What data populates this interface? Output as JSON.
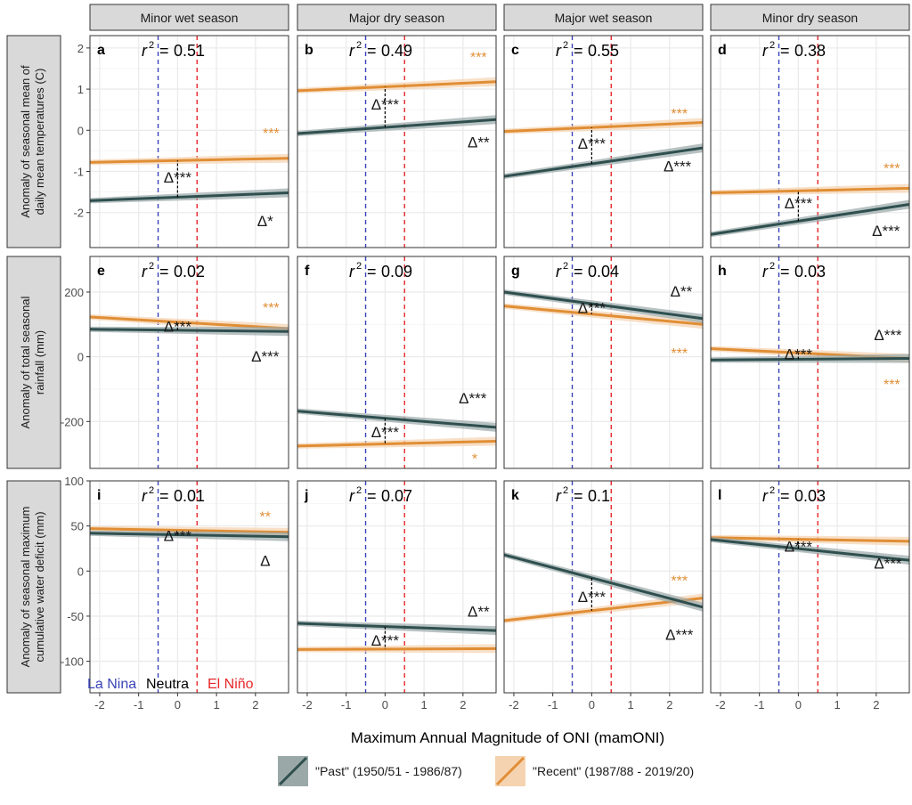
{
  "colors": {
    "past": "#2f4f4f",
    "past_band": "#9aa8a8",
    "recent": "#e08e35",
    "recent_band": "#f5d3b0",
    "la_nina": "#3a44b8",
    "el_nino": "#e8272b",
    "strip_bg": "#d9d9d9",
    "grid": "#ebebeb"
  },
  "chart_data": {
    "type": "line",
    "x_label": "Maximum Annual Magnitude of ONI (mamONI)",
    "x_range": [
      -2.25,
      2.85
    ],
    "x_ticks": [
      -2,
      -1,
      0,
      1,
      2
    ],
    "x_tick_labels": [
      "-2",
      "-1",
      "0",
      "1",
      "2"
    ],
    "thresholds": {
      "la_nina": -0.5,
      "el_nino": 0.5
    },
    "phase_labels": {
      "la_nina": "La Nina",
      "neutral": "Neutra",
      "el_nino": "El Niño"
    },
    "columns": [
      "Minor wet season",
      "Major dry season",
      "Major wet season",
      "Minor dry season"
    ],
    "rows": [
      {
        "ylabel": [
          "Anomaly of seasonal mean of",
          "daily mean temperatures (C)"
        ],
        "ylim": [
          -2.85,
          2.3
        ],
        "y_ticks": [
          -2,
          -1,
          0,
          1,
          2
        ],
        "y_tick_labels": [
          "-2",
          "-1",
          "0",
          "1",
          "2"
        ]
      },
      {
        "ylabel": [
          "Anomaly of total seasonal",
          "rainfall (mm)"
        ],
        "ylim": [
          -345,
          310
        ],
        "y_ticks": [
          -200,
          0,
          200
        ],
        "y_tick_labels": [
          "-200",
          "0",
          "200"
        ]
      },
      {
        "ylabel": [
          "Anomaly of seasonal maximum",
          "cumulative water deficit (mm)"
        ],
        "ylim": [
          -135,
          100
        ],
        "y_ticks": [
          -100,
          -50,
          0,
          50,
          100
        ],
        "y_tick_labels": [
          "-100",
          "-50",
          "0",
          "50",
          "100"
        ]
      }
    ],
    "panels": [
      {
        "label": "a",
        "r2": "0.51",
        "past": [
          [
            -2.25,
            -1.71
          ],
          [
            2.85,
            -1.52
          ]
        ],
        "recent": [
          [
            -2.25,
            -0.78
          ],
          [
            2.85,
            -0.68
          ]
        ],
        "recent_sig": {
          "text": "***",
          "x": 2.4,
          "y": -0.1
        },
        "past_sig": {
          "text": "Δ*",
          "x": 2.25,
          "y": -2.23
        },
        "delta_sig": {
          "text": "Δ***",
          "x": 0.0,
          "y": -1.17
        }
      },
      {
        "label": "b",
        "r2": "0.49",
        "past": [
          [
            -2.25,
            -0.08
          ],
          [
            2.85,
            0.26
          ]
        ],
        "recent": [
          [
            -2.25,
            0.96
          ],
          [
            2.85,
            1.18
          ]
        ],
        "recent_sig": {
          "text": "***",
          "x": 2.4,
          "y": 1.75
        },
        "past_sig": {
          "text": "Δ**",
          "x": 2.4,
          "y": -0.32
        },
        "delta_sig": {
          "text": "Δ***",
          "x": 0.0,
          "y": 0.6
        }
      },
      {
        "label": "c",
        "r2": "0.55",
        "past": [
          [
            -2.25,
            -1.12
          ],
          [
            2.85,
            -0.43
          ]
        ],
        "recent": [
          [
            -2.25,
            -0.03
          ],
          [
            2.85,
            0.19
          ]
        ],
        "recent_sig": {
          "text": "***",
          "x": 2.25,
          "y": 0.38
        },
        "past_sig": {
          "text": "Δ***",
          "x": 2.2,
          "y": -0.9
        },
        "delta_sig": {
          "text": "Δ***",
          "x": 0.0,
          "y": -0.35
        }
      },
      {
        "label": "d",
        "r2": "0.38",
        "past": [
          [
            -2.25,
            -2.53
          ],
          [
            2.85,
            -1.8
          ]
        ],
        "recent": [
          [
            -2.25,
            -1.52
          ],
          [
            2.85,
            -1.41
          ]
        ],
        "recent_sig": {
          "text": "***",
          "x": 2.4,
          "y": -0.95
        },
        "past_sig": {
          "text": "Δ***",
          "x": 2.25,
          "y": -2.47
        },
        "delta_sig": {
          "text": "Δ***",
          "x": 0.0,
          "y": -1.8
        }
      },
      {
        "label": "e",
        "r2": "0.02",
        "past": [
          [
            -2.25,
            85
          ],
          [
            2.85,
            78
          ]
        ],
        "recent": [
          [
            -2.25,
            123
          ],
          [
            2.85,
            87
          ]
        ],
        "recent_sig": {
          "text": "***",
          "x": 2.4,
          "y": 148
        },
        "past_sig": {
          "text": "Δ***",
          "x": 2.25,
          "y": -2
        },
        "delta_sig": {
          "text": "Δ***",
          "x": 0.0,
          "y": 90
        }
      },
      {
        "label": "f",
        "r2": "0.09",
        "past": [
          [
            -2.25,
            -168
          ],
          [
            2.85,
            -218
          ]
        ],
        "recent": [
          [
            -2.25,
            -276
          ],
          [
            2.85,
            -261
          ]
        ],
        "recent_sig": {
          "text": "*",
          "x": 2.3,
          "y": -318
        },
        "past_sig": {
          "text": "Δ***",
          "x": 2.25,
          "y": -132
        },
        "delta_sig": {
          "text": "Δ***",
          "x": 0.0,
          "y": -237
        }
      },
      {
        "label": "g",
        "r2": "0.04",
        "past": [
          [
            -2.25,
            200
          ],
          [
            2.85,
            118
          ]
        ],
        "recent": [
          [
            -2.25,
            157
          ],
          [
            2.85,
            100
          ]
        ],
        "recent_sig": {
          "text": "***",
          "x": 2.25,
          "y": 8
        },
        "past_sig": {
          "text": "Δ**",
          "x": 2.3,
          "y": 198
        },
        "delta_sig": {
          "text": "Δ***",
          "x": 0.0,
          "y": 148
        }
      },
      {
        "label": "h",
        "r2": "0.03",
        "past": [
          [
            -2.25,
            -10
          ],
          [
            2.85,
            -5
          ]
        ],
        "recent": [
          [
            -2.25,
            25
          ],
          [
            2.85,
            -5
          ]
        ],
        "recent_sig": {
          "text": "***",
          "x": 2.4,
          "y": -88
        },
        "past_sig": {
          "text": "Δ***",
          "x": 2.3,
          "y": 63
        },
        "delta_sig": {
          "text": "Δ***",
          "x": 0.0,
          "y": 5
        }
      },
      {
        "label": "i",
        "r2": "0.01",
        "past": [
          [
            -2.25,
            42
          ],
          [
            2.85,
            38
          ]
        ],
        "recent": [
          [
            -2.25,
            47
          ],
          [
            2.85,
            43
          ]
        ],
        "recent_sig": {
          "text": "**",
          "x": 2.25,
          "y": 59
        },
        "past_sig": {
          "text": "Δ",
          "x": 2.25,
          "y": 10
        },
        "delta_sig": {
          "text": "Δ***",
          "x": 0.0,
          "y": 38
        }
      },
      {
        "label": "j",
        "r2": "0.07",
        "past": [
          [
            -2.25,
            -58
          ],
          [
            2.85,
            -66
          ]
        ],
        "recent": [
          [
            -2.25,
            -87
          ],
          [
            2.85,
            -86
          ]
        ],
        "recent_sig": {
          "text": "",
          "x": 2.3,
          "y": -60
        },
        "past_sig": {
          "text": "Δ**",
          "x": 2.4,
          "y": -46
        },
        "delta_sig": {
          "text": "Δ***",
          "x": 0.0,
          "y": -78
        }
      },
      {
        "label": "k",
        "r2": "0.1",
        "past": [
          [
            -2.25,
            18
          ],
          [
            2.85,
            -40
          ]
        ],
        "recent": [
          [
            -2.25,
            -55
          ],
          [
            2.85,
            -30
          ]
        ],
        "recent_sig": {
          "text": "***",
          "x": 2.25,
          "y": -12
        },
        "past_sig": {
          "text": "Δ***",
          "x": 2.25,
          "y": -72
        },
        "delta_sig": {
          "text": "Δ***",
          "x": 0.0,
          "y": -30
        }
      },
      {
        "label": "l",
        "r2": "0.03",
        "past": [
          [
            -2.25,
            35
          ],
          [
            2.85,
            12
          ]
        ],
        "recent": [
          [
            -2.25,
            37
          ],
          [
            2.85,
            33
          ]
        ],
        "recent_sig": {
          "text": "",
          "x": 2.3,
          "y": 50
        },
        "past_sig": {
          "text": "Δ***",
          "x": 2.3,
          "y": 7
        },
        "delta_sig": {
          "text": "Δ***",
          "x": 0.0,
          "y": 26
        }
      }
    ],
    "legend": [
      {
        "key": "past",
        "label": "\"Past\" (1950/51 - 1986/87)"
      },
      {
        "key": "recent",
        "label": "\"Recent\" (1987/88 - 2019/20)"
      }
    ]
  }
}
